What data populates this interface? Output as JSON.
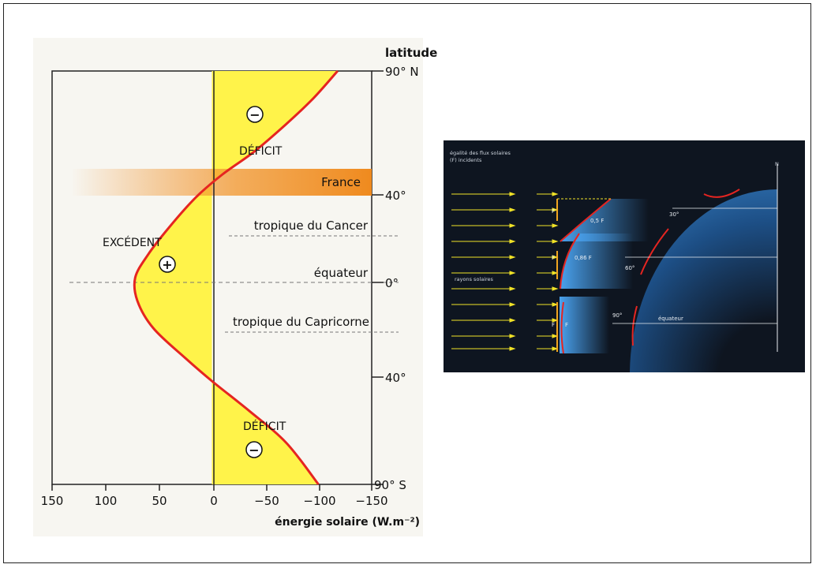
{
  "left_chart": {
    "axis_title_latitude": "latitude",
    "lat_ticks": [
      "90° N",
      "40°",
      "0°",
      "-40°",
      "90° S"
    ],
    "x_ticks": [
      "150",
      "100",
      "50",
      "0",
      "−50",
      "−100",
      "−150"
    ],
    "x_axis_title": "énergie solaire (W.m⁻²)",
    "labels": {
      "deficit_north": "DÉFICIT",
      "deficit_south": "DÉFICIT",
      "excedent": "EXCÉDENT",
      "france": "France",
      "tropic_cancer": "tropique du Cancer",
      "equator": "équateur",
      "tropic_capricorn": "tropique du Capricorne",
      "minus_sign": "−",
      "plus_sign": "+"
    },
    "colors": {
      "deficit_fill": "#fff34a",
      "curve": "#e52521",
      "france_band": "#ef8a1e",
      "panel_bg": "#f7f6f1"
    }
  },
  "chart_data": {
    "type": "line",
    "xlabel": "énergie solaire (W.m⁻²)",
    "ylabel": "latitude",
    "xlim": [
      150,
      -150
    ],
    "ylim": [
      -90,
      90
    ],
    "x_values": [
      -118,
      -95,
      -70,
      -40,
      -10,
      15,
      40,
      60,
      72,
      70,
      55,
      25,
      0,
      -35,
      -70,
      -100
    ],
    "y_values": [
      90,
      78,
      67,
      55,
      45,
      35,
      22,
      10,
      0,
      -10,
      -22,
      -35,
      -45,
      -58,
      -72,
      -90
    ]
  },
  "right_diagram": {
    "title_line1": "égalité des flux solaires",
    "title_line2": "(F) incidents",
    "north_label": "N",
    "rays_label": "rayons solaires",
    "flux_labels": [
      "F",
      "0,5 F",
      "F",
      "0,86 F",
      "F",
      "F"
    ],
    "angles": [
      "30°",
      "60°",
      "90°"
    ],
    "equator_label": "équateur",
    "colors": {
      "bg": "#0e1520",
      "globe": "#3c8fe0",
      "ray": "#f0e227",
      "edge": "#e52521"
    }
  }
}
